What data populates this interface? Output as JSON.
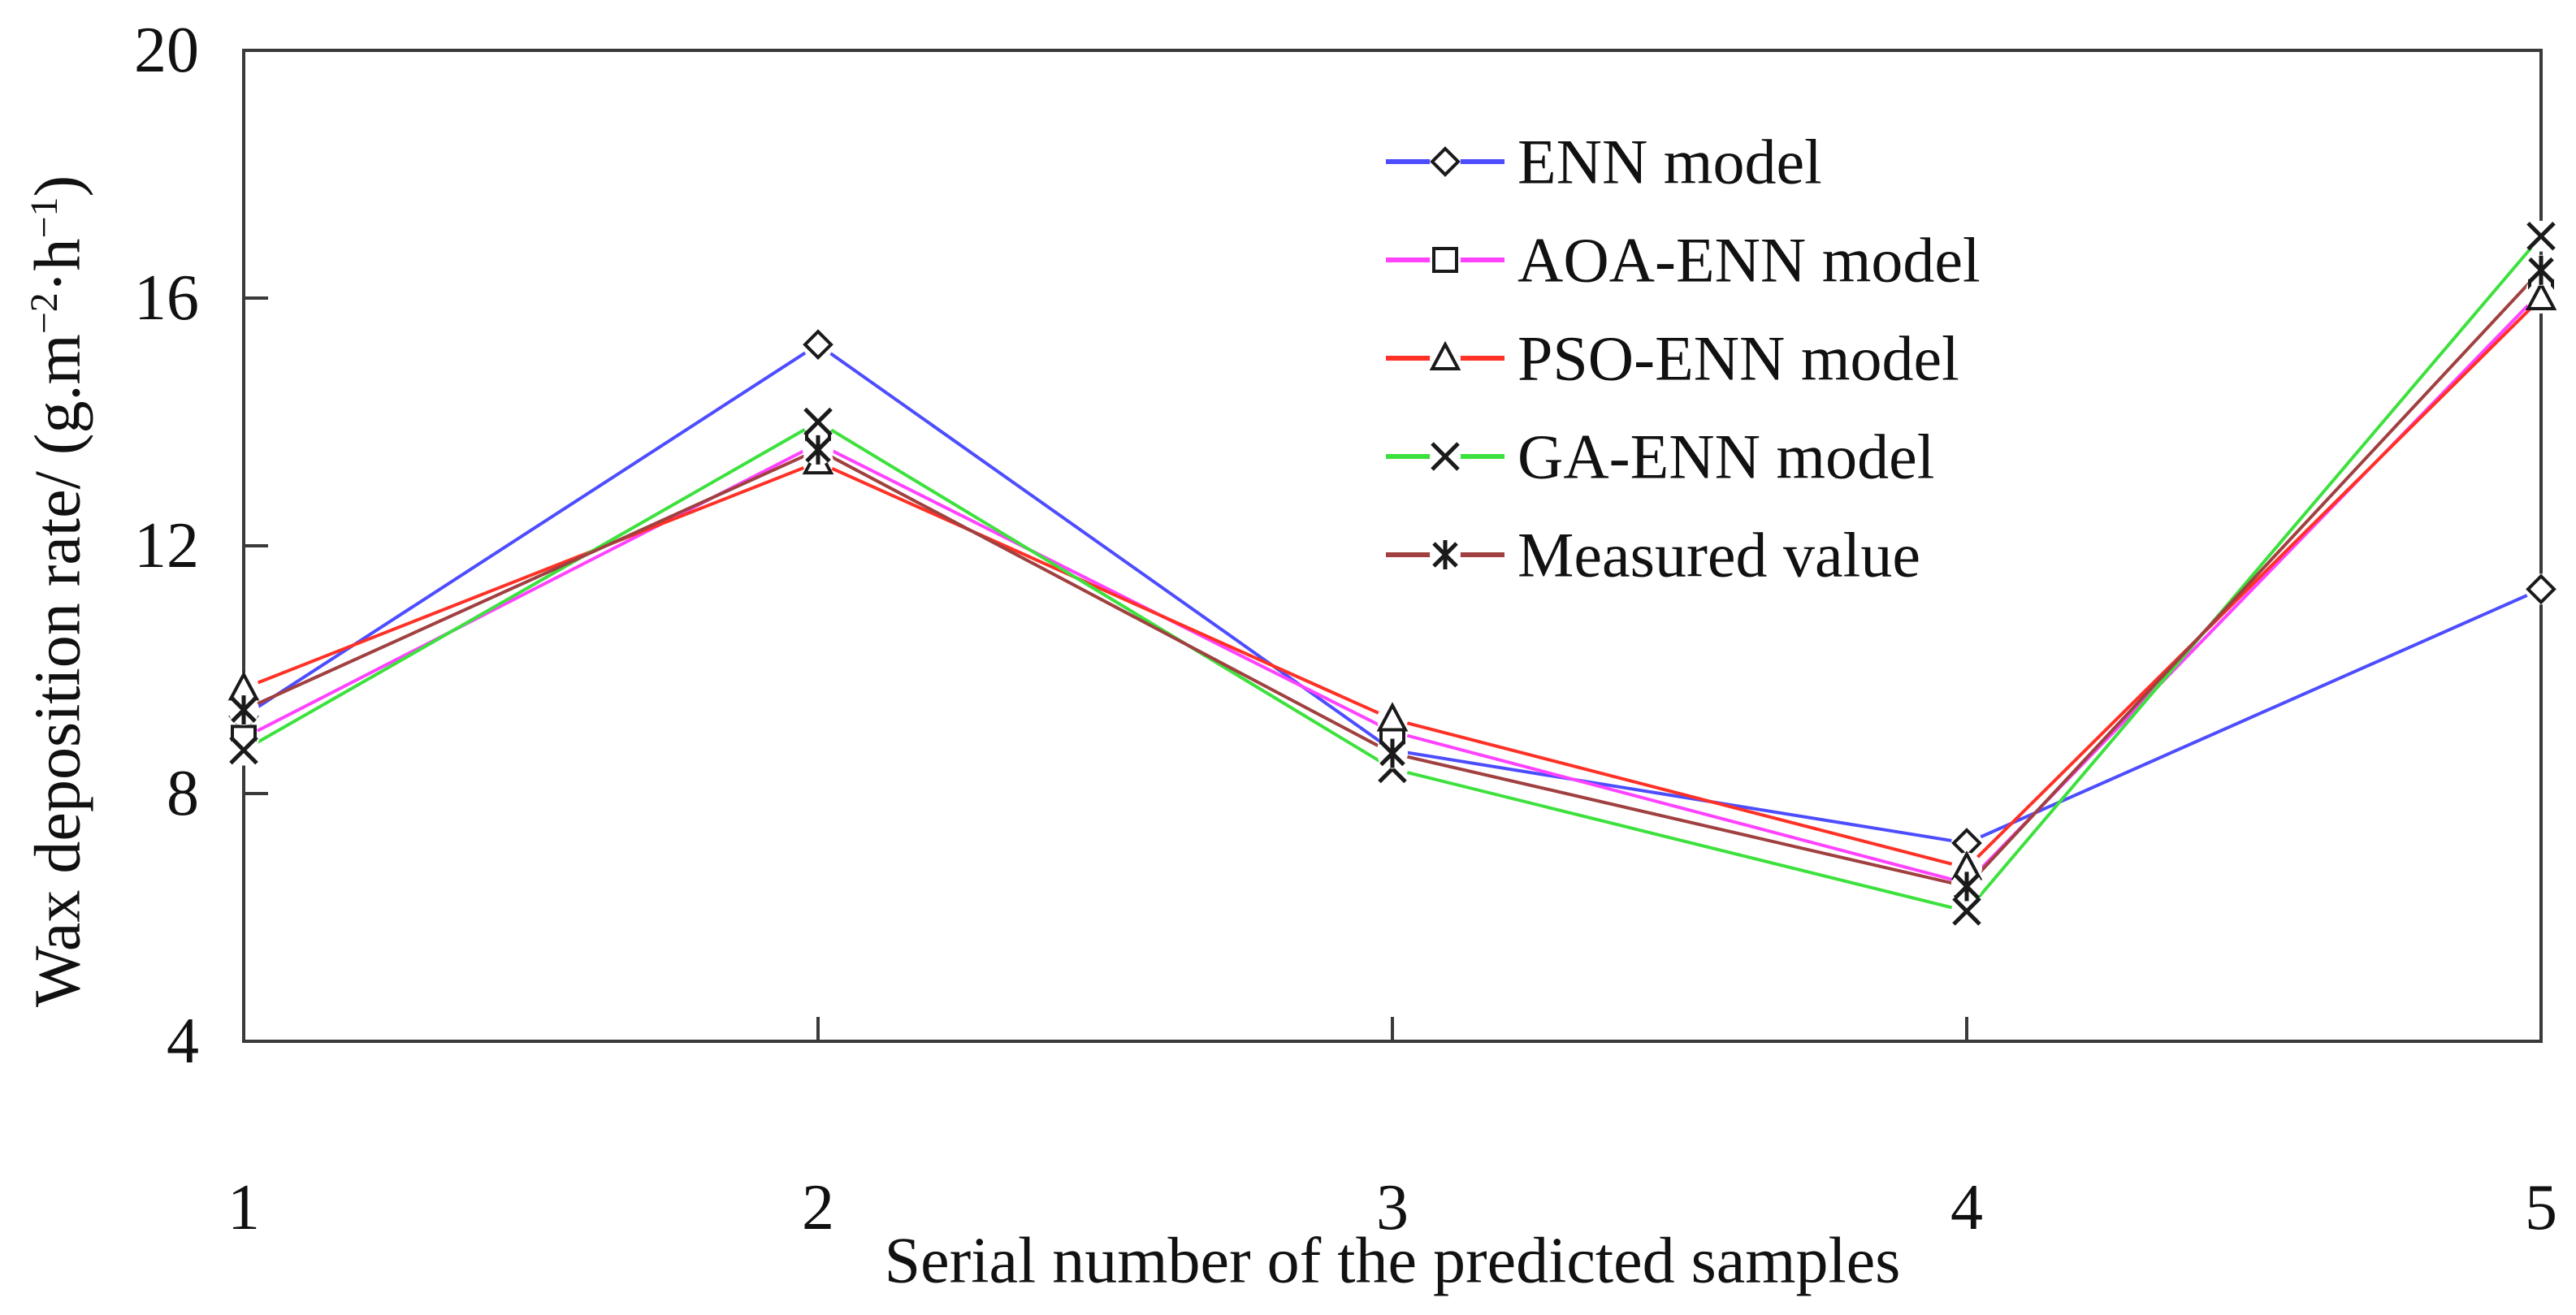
{
  "figure": {
    "background": "#ffffff",
    "text_color": "#111111",
    "axis_color": "#3a3a3a",
    "marker_color": "#1a1a1a"
  },
  "x_axis": {
    "title": "Serial number of the predicted samples",
    "tick_labels": [
      "1",
      "2",
      "3",
      "4",
      "5"
    ]
  },
  "y_axis": {
    "title_prefix": "Wax deposition rate/ (g.m",
    "title_sup1": "−2",
    "title_mid": "·h",
    "title_sup2": "−1",
    "title_suffix": ")",
    "tick_labels": [
      "4",
      "8",
      "12",
      "16",
      "20"
    ]
  },
  "chart_data": {
    "type": "line",
    "title": "",
    "xlabel": "Serial number of the predicted samples",
    "ylabel": "Wax deposition rate/ (g.m-2·h-1)",
    "x": [
      1,
      2,
      3,
      4,
      5
    ],
    "xlim": [
      1,
      5
    ],
    "ylim": [
      4,
      20
    ],
    "y_ticks": [
      4,
      8,
      12,
      16,
      20
    ],
    "grid": false,
    "legend_position": "inside upper right",
    "series": [
      {
        "name": "ENN model",
        "color": "#4d4dff",
        "marker": "diamond",
        "values": [
          9.25,
          15.25,
          8.7,
          7.2,
          11.3
        ]
      },
      {
        "name": "AOA-ENN model",
        "color": "#ff42ff",
        "marker": "square",
        "values": [
          8.9,
          13.65,
          9.0,
          6.55,
          16.1
        ]
      },
      {
        "name": "PSO-ENN model",
        "color": "#ff3126",
        "marker": "triangle",
        "values": [
          9.7,
          13.35,
          9.2,
          6.8,
          16.0
        ]
      },
      {
        "name": "GA-ENN model",
        "color": "#3de13d",
        "marker": "x",
        "values": [
          8.7,
          14.0,
          8.4,
          6.1,
          17.0
        ]
      },
      {
        "name": "Measured value",
        "color": "#a04040",
        "marker": "asterisk",
        "values": [
          9.35,
          13.55,
          8.65,
          6.5,
          16.45
        ]
      }
    ]
  }
}
